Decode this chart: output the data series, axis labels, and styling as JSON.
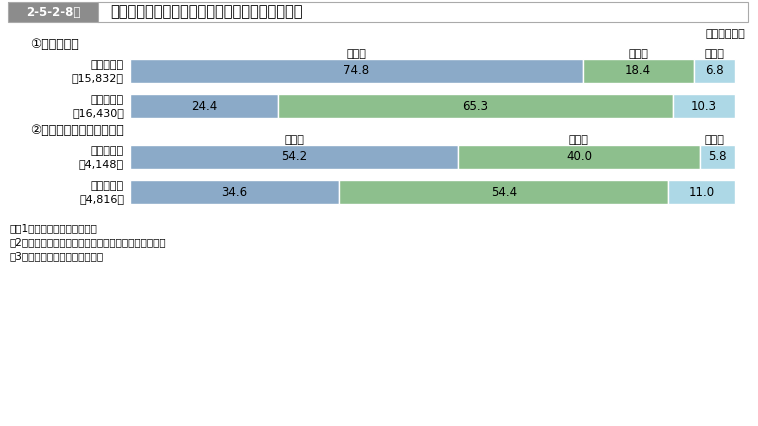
{
  "title_box": "2-5-2-8図",
  "title_main": "保護観察新規受理時・終了時の就労状況別構成比",
  "year_label": "（平成９年）",
  "section1_title": "①　仮釈放者",
  "section2_title": "②　保護観察付執行猟予者",
  "col_label_unemployed": "無職者",
  "col_label_employed": "有職者",
  "col_label_other": "その他",
  "bars": [
    {
      "row_label_line1": "新規受理時",
      "row_label_line2": "（15,832）",
      "values": [
        74.8,
        18.4,
        6.8
      ]
    },
    {
      "row_label_line1": "終　了　時",
      "row_label_line2": "（16,430）",
      "values": [
        24.4,
        65.3,
        10.3
      ]
    },
    {
      "row_label_line1": "新規受理時",
      "row_label_line2": "（4,148）",
      "values": [
        54.2,
        40.0,
        5.8
      ]
    },
    {
      "row_label_line1": "終　了　時",
      "row_label_line2": "（4,816）",
      "values": [
        34.6,
        54.4,
        11.0
      ]
    }
  ],
  "color_unemployed": "#8baac8",
  "color_employed": "#8dbf8d",
  "color_other": "#add8e6",
  "footnotes": [
    "注、1　保護統計年報による。",
    "　2「その他」は，家事従事者，学生・生徒等である。",
    "　3（　）内は，実人員である。"
  ],
  "header_box_color": "#8c8c8c",
  "header_box_text_color": "white",
  "header_border_color": "#aaaaaa"
}
